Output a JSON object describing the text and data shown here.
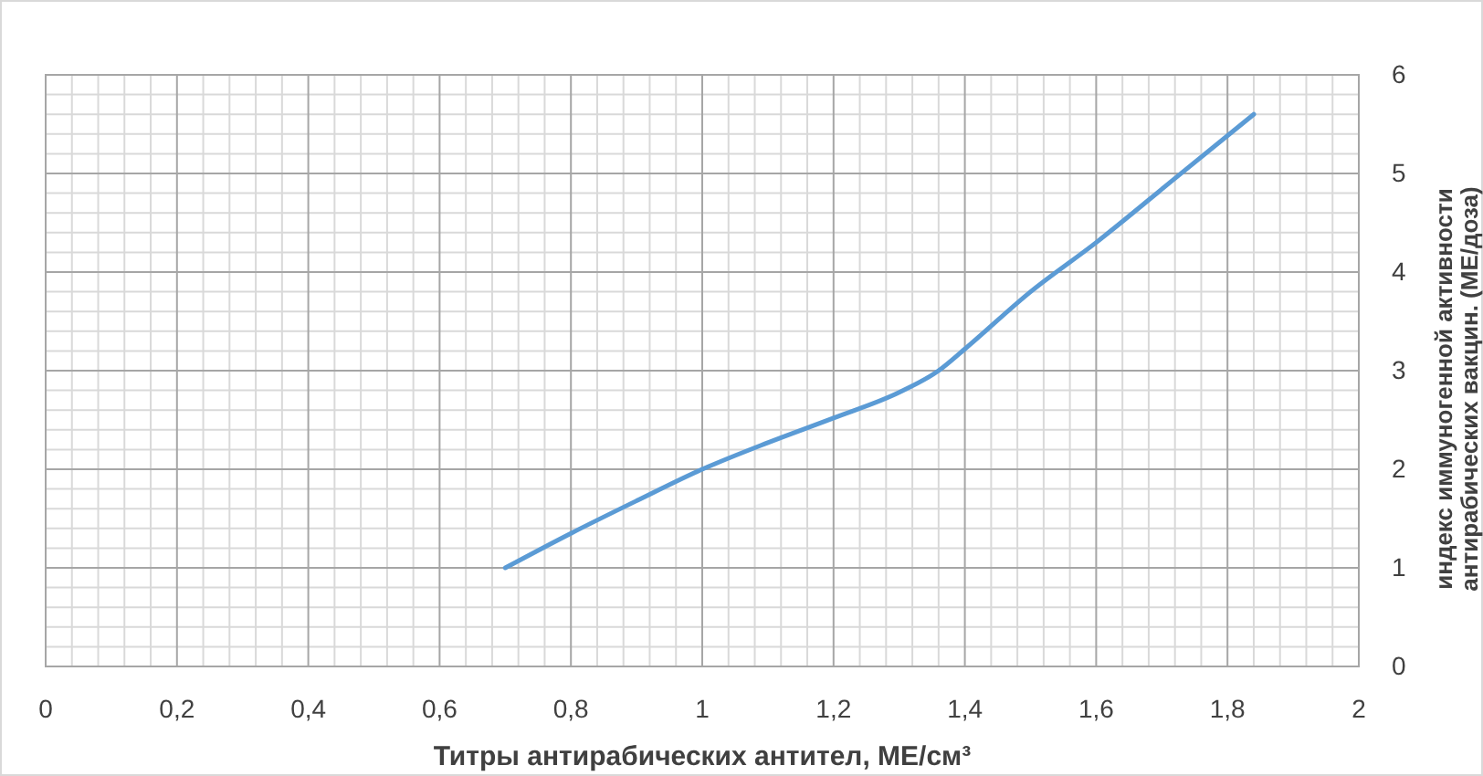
{
  "chart_data": {
    "type": "line",
    "xlabel": "Титры антирабических антител, МЕ/см³",
    "ylabel": "индекс иммуногенной активности\nантирабических вакцин. (МЕ/доза)",
    "x": [
      0.7,
      0.8,
      0.9,
      1.0,
      1.1,
      1.2,
      1.3,
      1.36,
      1.4,
      1.5,
      1.6,
      1.72,
      1.84
    ],
    "series": [
      {
        "color": "#5b9bd5",
        "values": [
          1,
          1.35,
          1.68,
          2.0,
          2.27,
          2.52,
          2.78,
          3.0,
          3.22,
          3.8,
          4.3,
          4.95,
          5.6
        ]
      }
    ],
    "xlim": [
      0,
      2
    ],
    "xticks": [
      {
        "value": 0,
        "label": "0"
      },
      {
        "value": 0.2,
        "label": "0,2"
      },
      {
        "value": 0.4,
        "label": "0,4"
      },
      {
        "value": 0.6,
        "label": "0,6"
      },
      {
        "value": 0.8,
        "label": "0,8"
      },
      {
        "value": 1,
        "label": "1"
      },
      {
        "value": 1.2,
        "label": "1,2"
      },
      {
        "value": 1.4,
        "label": "1,4"
      },
      {
        "value": 1.6,
        "label": "1,6"
      },
      {
        "value": 1.8,
        "label": "1,8"
      },
      {
        "value": 2,
        "label": "2"
      }
    ],
    "ylim": [
      0,
      6
    ],
    "yticks": [
      0,
      1,
      2,
      3,
      4,
      5,
      6
    ],
    "grid": true,
    "marker": "none",
    "line_style": "solid"
  }
}
